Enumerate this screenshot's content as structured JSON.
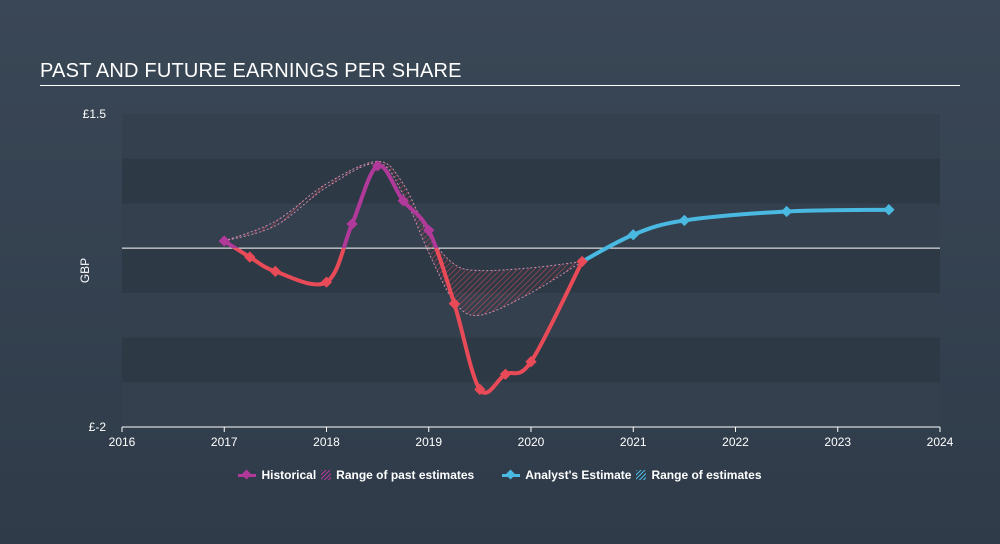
{
  "title": "PAST AND FUTURE EARNINGS PER SHARE",
  "chart_data": {
    "type": "line",
    "title": "PAST AND FUTURE EARNINGS PER SHARE",
    "ylabel": "GBP",
    "xlabel": "",
    "xlim": [
      2016,
      2024
    ],
    "ylim": [
      -2,
      1.5
    ],
    "y_tick_labels": [
      {
        "value": 1.5,
        "label": "£1.5"
      },
      {
        "value": -2,
        "label": "£-2"
      }
    ],
    "x_ticks": [
      2016,
      2017,
      2018,
      2019,
      2020,
      2021,
      2022,
      2023,
      2024
    ],
    "zero_line": 0,
    "series": [
      {
        "name": "Historical",
        "color": "#e84b57",
        "segments_color": {
          "above_zero": "#b0399a",
          "below_zero": "#e84b57"
        },
        "points": [
          {
            "x": 2017.0,
            "y": 0.08
          },
          {
            "x": 2017.25,
            "y": -0.1
          },
          {
            "x": 2017.5,
            "y": -0.26
          },
          {
            "x": 2018.0,
            "y": -0.38
          },
          {
            "x": 2018.25,
            "y": 0.27
          },
          {
            "x": 2018.5,
            "y": 0.92
          },
          {
            "x": 2018.75,
            "y": 0.53
          },
          {
            "x": 2019.0,
            "y": 0.2
          },
          {
            "x": 2019.25,
            "y": -0.62
          },
          {
            "x": 2019.5,
            "y": -1.58
          },
          {
            "x": 2019.75,
            "y": -1.41
          },
          {
            "x": 2020.0,
            "y": -1.27
          },
          {
            "x": 2020.5,
            "y": -0.15
          }
        ]
      },
      {
        "name": "Analyst's Estimate",
        "color": "#4ab9e1",
        "points": [
          {
            "x": 2020.5,
            "y": -0.15
          },
          {
            "x": 2021.0,
            "y": 0.15
          },
          {
            "x": 2021.5,
            "y": 0.31
          },
          {
            "x": 2022.5,
            "y": 0.41
          },
          {
            "x": 2023.5,
            "y": 0.43
          }
        ]
      }
    ],
    "ranges": [
      {
        "name": "Range of past estimates",
        "upper": [
          {
            "x": 2017.0,
            "y": 0.08
          },
          {
            "x": 2017.5,
            "y": 0.3
          },
          {
            "x": 2018.0,
            "y": 0.72
          },
          {
            "x": 2018.5,
            "y": 0.97
          },
          {
            "x": 2018.75,
            "y": 0.72
          },
          {
            "x": 2019.0,
            "y": 0.15
          },
          {
            "x": 2019.25,
            "y": -0.18
          },
          {
            "x": 2019.5,
            "y": -0.25
          },
          {
            "x": 2020.0,
            "y": -0.22
          },
          {
            "x": 2020.5,
            "y": -0.15
          }
        ],
        "lower": [
          {
            "x": 2017.0,
            "y": 0.08
          },
          {
            "x": 2017.5,
            "y": 0.25
          },
          {
            "x": 2018.0,
            "y": 0.68
          },
          {
            "x": 2018.5,
            "y": 0.95
          },
          {
            "x": 2018.75,
            "y": 0.6
          },
          {
            "x": 2019.0,
            "y": -0.05
          },
          {
            "x": 2019.25,
            "y": -0.6
          },
          {
            "x": 2019.5,
            "y": -0.75
          },
          {
            "x": 2020.0,
            "y": -0.5
          },
          {
            "x": 2020.5,
            "y": -0.15
          }
        ]
      }
    ],
    "legend": {
      "placement": "bottom-center",
      "items": [
        {
          "label": "Historical",
          "kind": "line",
          "color": "#b0399a"
        },
        {
          "label": "Range of past estimates",
          "kind": "hatch",
          "color": "#b0399a"
        },
        {
          "label": "Analyst's Estimate",
          "kind": "line",
          "color": "#4ab9e1"
        },
        {
          "label": "Range of estimates",
          "kind": "hatch",
          "color": "#4ab9e1"
        }
      ]
    },
    "grid": "horizontal bands"
  }
}
